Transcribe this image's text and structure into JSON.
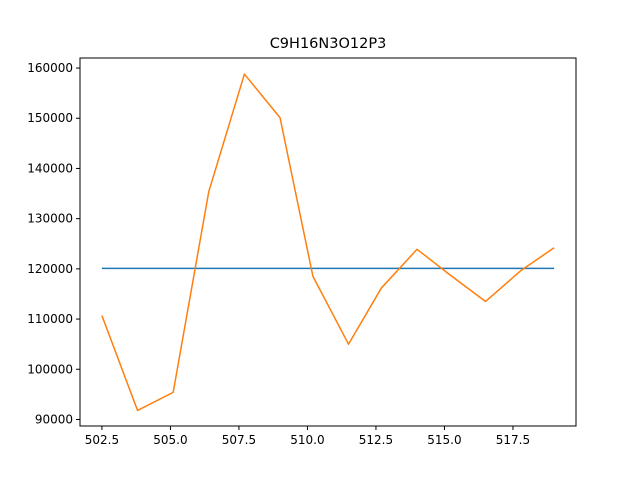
{
  "chart_data": {
    "type": "line",
    "title": "C9H16N3O12P3",
    "xlabel": "",
    "ylabel": "",
    "xlim": [
      501.7,
      519.8
    ],
    "ylim": [
      88700,
      162000
    ],
    "grid": false,
    "x_ticks": [
      502.5,
      505.0,
      507.5,
      510.0,
      512.5,
      515.0,
      517.5
    ],
    "x_tick_labels": [
      "502.5",
      "505.0",
      "507.5",
      "510.0",
      "512.5",
      "515.0",
      "517.5"
    ],
    "y_ticks": [
      90000,
      100000,
      110000,
      120000,
      130000,
      140000,
      150000,
      160000
    ],
    "y_tick_labels": [
      "90000",
      "100000",
      "110000",
      "120000",
      "130000",
      "140000",
      "150000",
      "160000"
    ],
    "series": [
      {
        "color": "#1f77b4",
        "x": [
          502.5,
          519.0
        ],
        "y": [
          120100,
          120100
        ]
      },
      {
        "color": "#ff7f0e",
        "x": [
          502.5,
          503.8,
          505.1,
          506.4,
          507.7,
          509.0,
          510.2,
          511.5,
          512.7,
          514.0,
          515.2,
          516.5,
          517.8,
          519.0
        ],
        "y": [
          110700,
          91800,
          95400,
          135400,
          158800,
          150100,
          118500,
          105000,
          116200,
          123900,
          118800,
          113500,
          119700,
          124200
        ]
      }
    ]
  }
}
